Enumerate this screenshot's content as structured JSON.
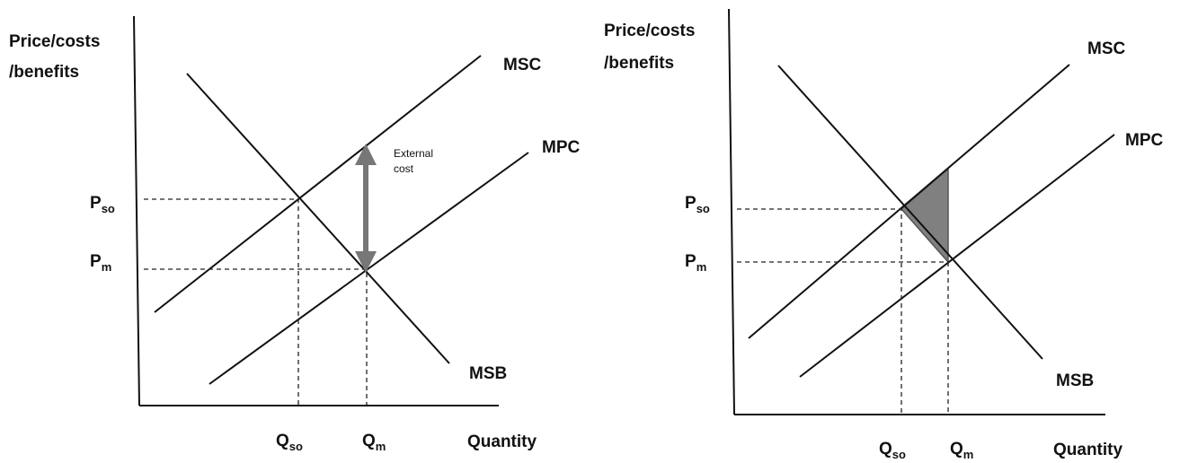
{
  "diagrams": [
    {
      "y_axis_label": [
        "Price/costs",
        "/benefits"
      ],
      "x_axis_label": "Quantity",
      "curves": [
        "MSC",
        "MPC",
        "MSB"
      ],
      "price_labels": [
        {
          "symbol": "P",
          "sub": "so"
        },
        {
          "symbol": "P",
          "sub": "m"
        }
      ],
      "quantity_labels": [
        {
          "symbol": "Q",
          "sub": "so"
        },
        {
          "symbol": "Q",
          "sub": "m"
        }
      ],
      "annotation": [
        "External",
        "cost"
      ]
    },
    {
      "y_axis_label": [
        "Price/costs",
        "/benefits"
      ],
      "x_axis_label": "Quantity",
      "curves": [
        "MSC",
        "MPC",
        "MSB"
      ],
      "price_labels": [
        {
          "symbol": "P",
          "sub": "so"
        },
        {
          "symbol": "P",
          "sub": "m"
        }
      ],
      "quantity_labels": [
        {
          "symbol": "Q",
          "sub": "so"
        },
        {
          "symbol": "Q",
          "sub": "m"
        }
      ]
    }
  ]
}
